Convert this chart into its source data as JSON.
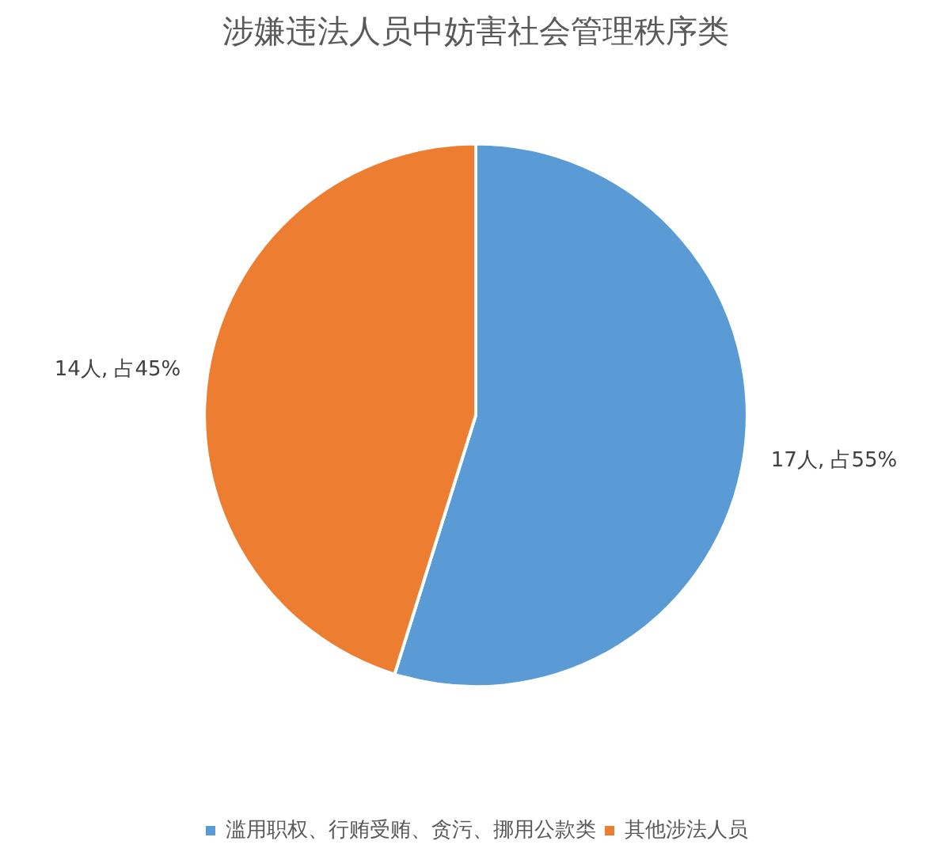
{
  "chart_data": {
    "type": "pie",
    "title": "涉嫌违法人员中妨害社会管理秩序类",
    "categories": [
      "滥用职权、行贿受贿、贪污、挪用公款类",
      "其他涉法人员"
    ],
    "values": [
      17,
      14
    ],
    "colors": [
      "#5b9bd5",
      "#ed7d31"
    ],
    "value_labels": [
      "17人, 占55%",
      "14人, 占45%"
    ],
    "legend": "bottom"
  }
}
